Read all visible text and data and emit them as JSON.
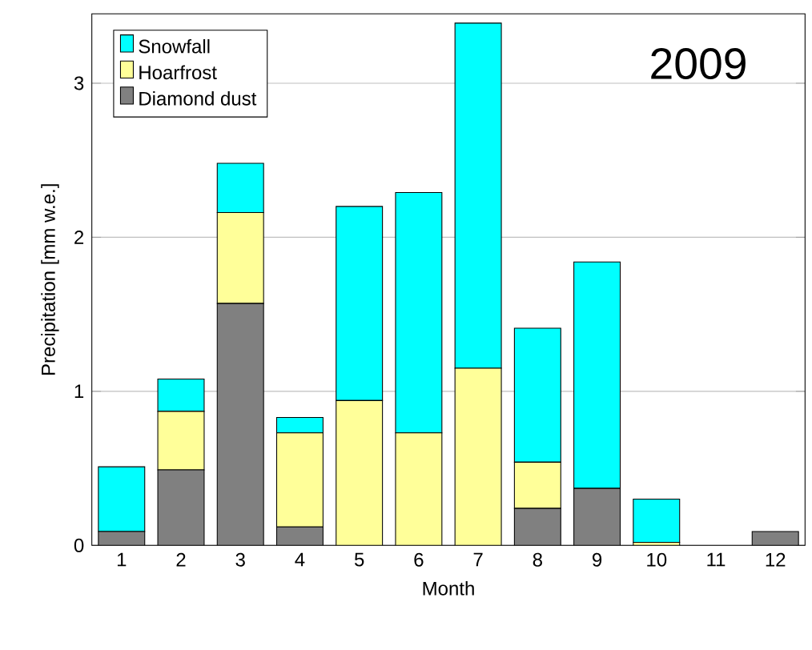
{
  "chart_data": {
    "type": "bar",
    "stacked": true,
    "xlabel": "Month",
    "ylabel": "Precipitation [mm w.e.]",
    "annotations": [
      "2009"
    ],
    "categories": [
      "1",
      "2",
      "3",
      "4",
      "5",
      "6",
      "7",
      "8",
      "9",
      "10",
      "11",
      "12"
    ],
    "series": [
      {
        "name": "Diamond dust",
        "color": "#808080",
        "values": [
          0.09,
          0.49,
          1.57,
          0.12,
          0,
          0,
          0,
          0.24,
          0.37,
          0,
          0,
          0.09
        ]
      },
      {
        "name": "Hoarfrost",
        "color": "#ffff99",
        "values": [
          0,
          0.38,
          0.59,
          0.61,
          0.94,
          0.73,
          1.15,
          0.3,
          0,
          0.02,
          0,
          0
        ]
      },
      {
        "name": "Snowfall",
        "color": "#00ffff",
        "values": [
          0.42,
          0.21,
          0.32,
          0.1,
          1.26,
          1.56,
          2.24,
          0.87,
          1.47,
          0.28,
          0,
          0
        ]
      }
    ],
    "ylim": [
      0,
      3.45
    ],
    "yticks": [
      0,
      1,
      2,
      3
    ],
    "grid": "y",
    "legend": "top left"
  }
}
